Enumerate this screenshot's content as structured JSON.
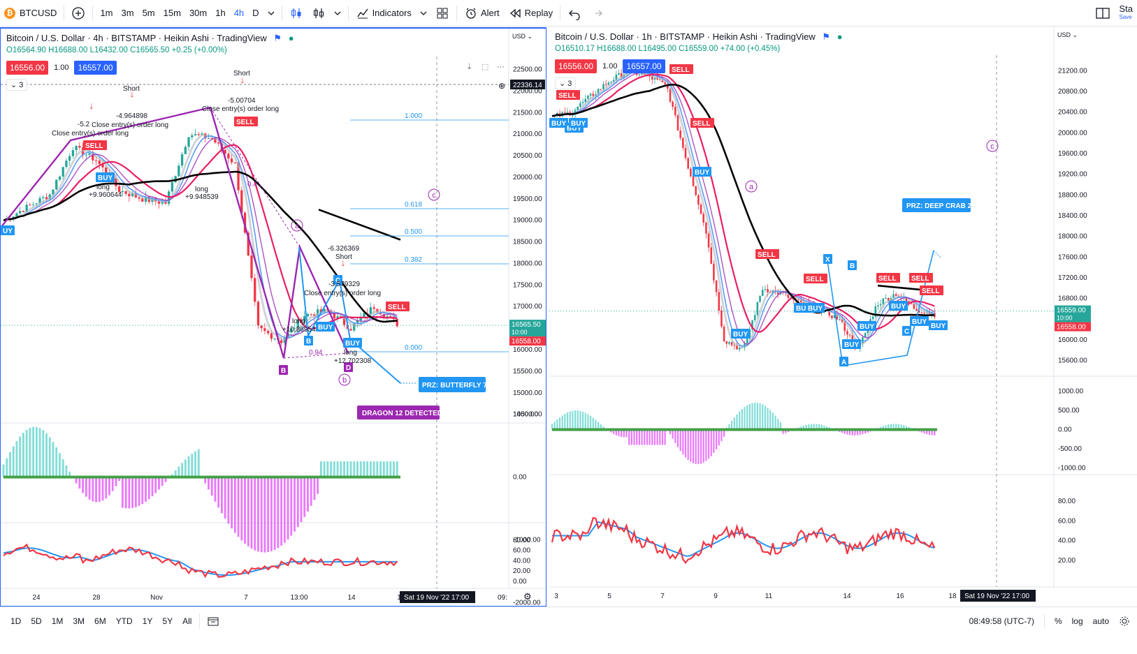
{
  "toolbar": {
    "symbol": "BTCUSD",
    "timeframes": [
      "1m",
      "3m",
      "5m",
      "15m",
      "30m",
      "1h",
      "4h",
      "D"
    ],
    "active_timeframe": "4h",
    "indicators_label": "Indicators",
    "alert_label": "Alert",
    "replay_label": "Replay",
    "right_label": "Sta",
    "right_sublabel": "Save"
  },
  "left_chart": {
    "title": "Bitcoin / U.S. Dollar · 4h · BITSTAMP · Heikin Ashi · TradingView",
    "ohlc": "O16564.90 H16688.00 L16432.00 C16565.50 +0.25 (+0.00%)",
    "bid": "16556.00",
    "qty": "1.00",
    "ask": "16557.00",
    "legend_count": "3",
    "currency": "USD",
    "crosshair_price": "22336.14",
    "last_price": "16565.50",
    "countdown": "10:00",
    "red_price": "16558.00",
    "price_ticks": [
      "22500.00",
      "22000.00",
      "21500.00",
      "21000.00",
      "20500.00",
      "20000.00",
      "19500.00",
      "19000.00",
      "18500.00",
      "18000.00",
      "17500.00",
      "17000.00",
      "16500.00",
      "16000.00",
      "15500.00",
      "15000.00",
      "14500.00"
    ],
    "osc_ticks": [
      "1000.00",
      "0.00",
      "-1000.00",
      "-2000.00"
    ],
    "rsi_ticks": [
      "80.00",
      "60.00",
      "40.00",
      "20.00",
      "0.00"
    ],
    "time_ticks": [
      "24",
      "28",
      "Nov",
      "7",
      "13:00",
      "14",
      "1"
    ],
    "time_badge": "Sat 19 Nov '22   17:00",
    "time_right": "09:",
    "fib_levels": [
      "1.000",
      "0.618",
      "0.500",
      "0.382",
      "0.000"
    ],
    "pattern_labels": [
      "a",
      "b",
      "c",
      "B",
      "D",
      "C"
    ],
    "annotations": {
      "short1": "Short",
      "val1": "-4.964898",
      "val2": "-5.2",
      "close1": "Close entry(s) order long",
      "close2": "Close entry(s) order long",
      "close3": "Close entry(s) order long",
      "val3": "-5.00704",
      "short2": "Short",
      "long1": "long",
      "long1v": "+9.960644",
      "long2": "long",
      "long2v": "+9.948539",
      "short3val": "-6.326369",
      "short3": "Short",
      "val4": "-3.579329",
      "long3": "long",
      "long3v": "+10.86954",
      "long4": "long",
      "long4v": "+12.702308",
      "ratio": "0.94",
      "ratio2": "0.4"
    },
    "prz": "PRZ: BUTTERFLY 7",
    "dragon": "DRAGON 12 DETECTED"
  },
  "right_chart": {
    "title": "Bitcoin / U.S. Dollar · 1h · BITSTAMP · Heikin Ashi · TradingView",
    "ohlc": "O16510.17 H16688.00 L16495.00 C16559.00 +74.00 (+0.45%)",
    "bid": "16556.00",
    "qty": "1.00",
    "ask": "16557.00",
    "legend_count": "3",
    "currency": "USD",
    "last_price": "16559.00",
    "countdown": "10:00",
    "red_price": "16558.00",
    "price_ticks": [
      "21200.00",
      "20800.00",
      "20400.00",
      "20000.00",
      "19600.00",
      "19200.00",
      "18800.00",
      "18400.00",
      "18000.00",
      "17600.00",
      "17200.00",
      "16800.00",
      "16400.00",
      "16000.00",
      "15600.00"
    ],
    "osc_ticks": [
      "1000.00",
      "500.00",
      "0.00",
      "-500.00",
      "-1000.00"
    ],
    "rsi_ticks": [
      "80.00",
      "60.00",
      "40.00",
      "20.00"
    ],
    "time_ticks": [
      "3",
      "5",
      "7",
      "9",
      "11",
      "14",
      "16",
      "18"
    ],
    "time_badge": "Sat 19 Nov '22   17:00",
    "pattern_labels": [
      "a",
      "c",
      "X",
      "B",
      "A",
      "C"
    ],
    "prz": "PRZ: DEEP CRAB 23"
  },
  "signals": {
    "buy": "BUY",
    "sell": "SELL"
  },
  "bottom": {
    "ranges": [
      "1D",
      "5D",
      "1M",
      "3M",
      "6M",
      "YTD",
      "1Y",
      "5Y",
      "All"
    ],
    "clock": "08:49:58 (UTC-7)",
    "percent": "%",
    "log": "log",
    "auto": "auto"
  },
  "colors": {
    "up": "#26a69a",
    "down": "#f23645",
    "accent": "#2962ff",
    "pattern": "#9c27b0"
  }
}
